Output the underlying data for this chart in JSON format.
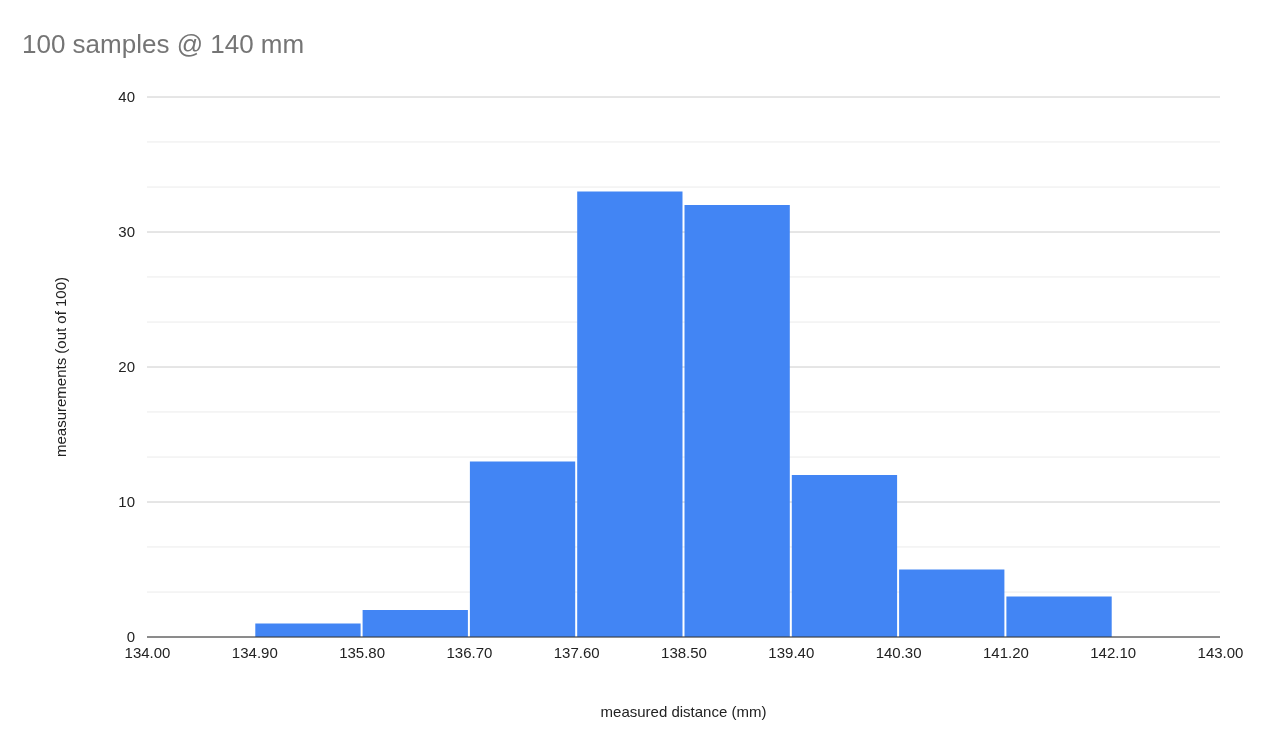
{
  "chart_data": {
    "type": "histogram",
    "title": "100 samples @ 140 mm",
    "xlabel": "measured distance (mm)",
    "ylabel": "measurements (out of 100)",
    "bins": [
      134.0,
      134.9,
      135.8,
      136.7,
      137.6,
      138.5,
      139.4,
      140.3,
      141.2,
      142.1,
      143.0
    ],
    "values": [
      0,
      1,
      2,
      13,
      33,
      32,
      12,
      5,
      3,
      0
    ],
    "color": "#4285f4",
    "xlim": [
      134,
      143
    ],
    "xticks": [
      {
        "value": 134,
        "label": "134.00"
      },
      {
        "value": 134.9,
        "label": "134.90"
      },
      {
        "value": 135.8,
        "label": "135.80"
      },
      {
        "value": 136.7,
        "label": "136.70"
      },
      {
        "value": 137.6,
        "label": "137.60"
      },
      {
        "value": 138.5,
        "label": "138.50"
      },
      {
        "value": 139.4,
        "label": "139.40"
      },
      {
        "value": 140.3,
        "label": "140.30"
      },
      {
        "value": 141.2,
        "label": "141.20"
      },
      {
        "value": 142.1,
        "label": "142.10"
      },
      {
        "value": 143,
        "label": "143.00"
      }
    ],
    "ylim": [
      0,
      40
    ],
    "yticks": [
      0,
      {
        "value": 3.33,
        "label": null
      },
      {
        "value": 6.67,
        "label": null
      },
      10,
      {
        "value": 13.33,
        "label": null
      },
      {
        "value": 16.67,
        "label": null
      },
      20,
      {
        "value": 23.33,
        "label": null
      },
      {
        "value": 26.67,
        "label": null
      },
      30,
      {
        "value": 33.33,
        "label": null
      },
      {
        "value": 36.67,
        "label": null
      },
      40
    ],
    "grid": "y"
  }
}
